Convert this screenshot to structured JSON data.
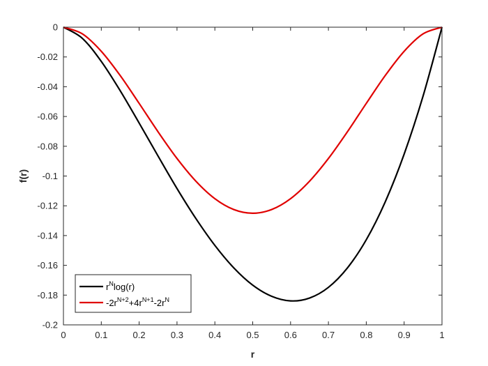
{
  "chart_data": {
    "type": "line",
    "title": "",
    "xlabel": "r",
    "ylabel": "f(r)",
    "xlim": [
      0,
      1
    ],
    "ylim": [
      -0.2,
      0
    ],
    "xticks": [
      "0",
      "0.1",
      "0.2",
      "0.3",
      "0.4",
      "0.5",
      "0.6",
      "0.7",
      "0.8",
      "0.9",
      "1"
    ],
    "yticks": [
      "0",
      "-0.02",
      "-0.04",
      "-0.06",
      "-0.08",
      "-0.1",
      "-0.12",
      "-0.14",
      "-0.16",
      "-0.18",
      "-0.2"
    ],
    "grid": false,
    "legend_position": "bottom-left",
    "x": [
      0,
      0.05,
      0.1,
      0.15,
      0.2,
      0.25,
      0.3,
      0.35,
      0.4,
      0.45,
      0.5,
      0.55,
      0.6,
      0.65,
      0.7,
      0.75,
      0.8,
      0.85,
      0.9,
      0.95,
      1
    ],
    "series": [
      {
        "name": "r^N log(r)",
        "legend": {
          "base": "r",
          "sup": "N",
          "rest": "log(r)"
        },
        "color": "#000000",
        "values": [
          0,
          -0.0075,
          -0.023,
          -0.0427,
          -0.0644,
          -0.0866,
          -0.1084,
          -0.1286,
          -0.1466,
          -0.1617,
          -0.1733,
          -0.1808,
          -0.1839,
          -0.182,
          -0.1748,
          -0.1618,
          -0.1428,
          -0.1174,
          -0.0853,
          -0.0463,
          0
        ]
      },
      {
        "name": "-2r^(N+2)+4r^(N+1)-2r^N",
        "legend": {
          "parts": [
            "-2r",
            "N+2",
            "+4r",
            "N+1",
            "-2r",
            "N"
          ]
        },
        "color": "#e00000",
        "values": [
          0,
          -0.0045,
          -0.0162,
          -0.0325,
          -0.0512,
          -0.0703,
          -0.0882,
          -0.1035,
          -0.1152,
          -0.1225,
          -0.125,
          -0.1225,
          -0.1152,
          -0.1035,
          -0.0882,
          -0.0703,
          -0.0512,
          -0.0325,
          -0.0162,
          -0.0045,
          0
        ]
      }
    ]
  }
}
